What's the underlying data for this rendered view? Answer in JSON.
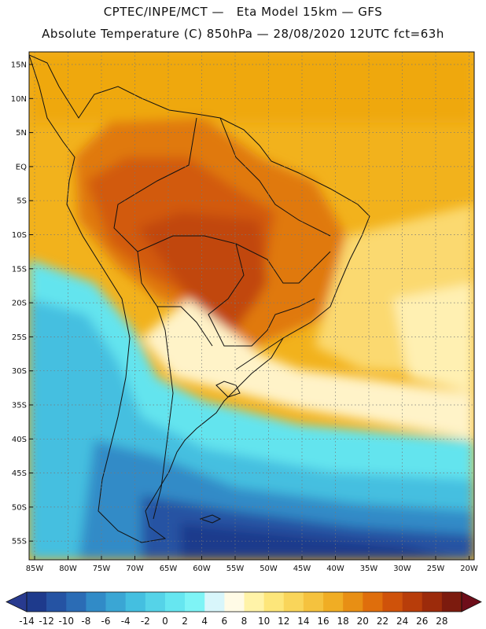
{
  "header": {
    "line1": "CPTEC/INPE/MCT —   Eta Model 15km — GFS",
    "line2": "Absolute Temperature (C) 850hPa — 28/08/2020 12UTC fct=63h"
  },
  "map": {
    "lat_labels": [
      "15N",
      "10N",
      "5N",
      "EQ",
      "5S",
      "10S",
      "15S",
      "20S",
      "25S",
      "30S",
      "35S",
      "40S",
      "45S",
      "50S",
      "55S"
    ],
    "lon_labels": [
      "85W",
      "80W",
      "75W",
      "70W",
      "65W",
      "60W",
      "55W",
      "50W",
      "45W",
      "40W",
      "35W",
      "30W",
      "25W",
      "20W"
    ],
    "grid": true
  },
  "colorbar": {
    "labels": [
      "-14",
      "-12",
      "-10",
      "-8",
      "-6",
      "-4",
      "-2",
      "0",
      "2",
      "4",
      "6",
      "8",
      "10",
      "12",
      "14",
      "16",
      "18",
      "20",
      "22",
      "24",
      "26",
      "28"
    ],
    "colors": [
      "#1e3a8c",
      "#2553a3",
      "#2b6cb5",
      "#318bc7",
      "#3aa6d4",
      "#44bfe0",
      "#55d3e8",
      "#66e6f0",
      "#7ef4f6",
      "#d8f6fb",
      "#fffbe6",
      "#fff3a8",
      "#fde67a",
      "#f9d55a",
      "#f5c23e",
      "#f0ad24",
      "#e88f14",
      "#df6e0c",
      "#cf520a",
      "#b83d0a",
      "#9c2b0b",
      "#7c1b0e"
    ],
    "arrow_colors": {
      "low": "#283a8f",
      "high": "#6e0e1a"
    }
  }
}
